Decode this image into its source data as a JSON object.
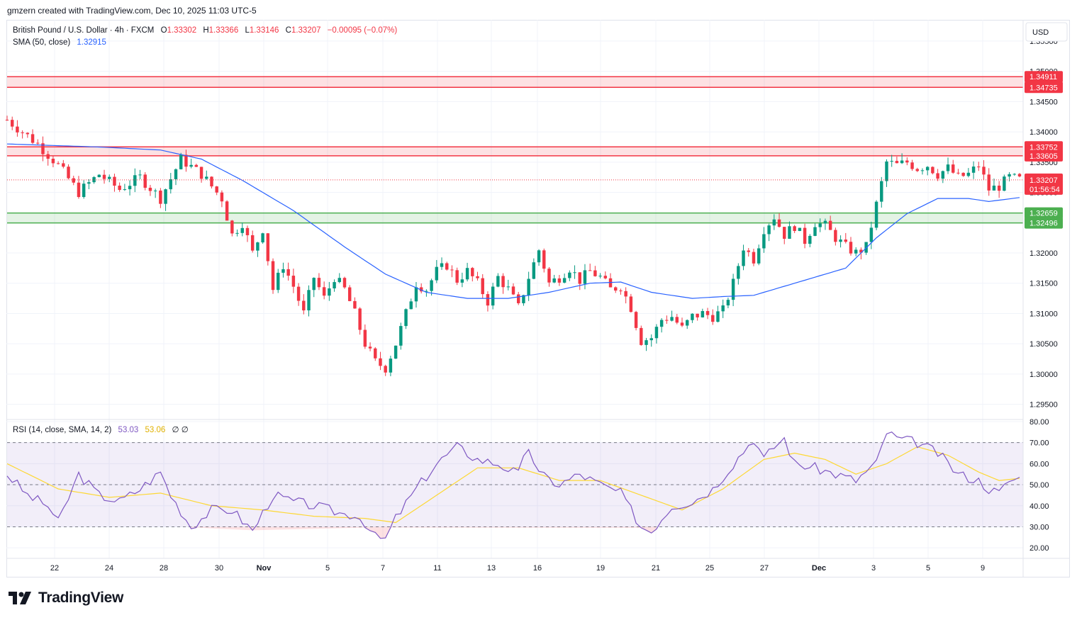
{
  "header": {
    "credit": "gmzern created with TradingView.com, Dec 10, 2025 11:03 UTC-5"
  },
  "legend": {
    "symbol": "British Pound / U.S. Dollar · 4h · FXCM",
    "o_label": "O",
    "o_value": "1.33302",
    "h_label": "H",
    "h_value": "1.33366",
    "l_label": "L",
    "l_value": "1.33146",
    "c_label": "C",
    "c_value": "1.33207",
    "change": "−0.00095 (−0.07%)",
    "sma_label": "SMA (50, close)",
    "sma_value": "1.32915",
    "rsi_label": "RSI (14, close, SMA, 14, 2)",
    "rsi_value": "53.03",
    "rsi_sma_value": "53.06",
    "rsi_extra": "∅ ∅"
  },
  "currency": "USD",
  "branding": "TradingView",
  "colors": {
    "up": "#089981",
    "down": "#f23645",
    "sma": "#2962ff",
    "rsi": "#7e57c2",
    "rsi_sma": "#fdd835",
    "resistance": "#f23645",
    "support": "#4caf50",
    "text": "#131722"
  },
  "chart_data": [
    {
      "type": "candlestick",
      "title": "British Pound / U.S. Dollar · 4h · FXCM",
      "ylim": [
        1.2925,
        1.3585
      ],
      "y_ticks": [
        "1.35500",
        "1.35000",
        "1.34500",
        "1.34000",
        "1.33500",
        "1.33000",
        "1.32500",
        "1.32000",
        "1.31500",
        "1.31000",
        "1.30500",
        "1.30000",
        "1.29500"
      ],
      "x_ticks": [
        "22",
        "24",
        "28",
        "30",
        "Nov",
        "5",
        "7",
        "11",
        "13",
        "16",
        "19",
        "21",
        "25",
        "27",
        "Dec",
        "3",
        "5",
        "9"
      ],
      "x_tick_bold": [
        "Nov",
        "Dec"
      ],
      "last_price": "1.33207",
      "countdown": "01:56:54",
      "zones": [
        {
          "kind": "resistance",
          "high": 1.34911,
          "low": 1.34735,
          "high_label": "1.34911",
          "low_label": "1.34735"
        },
        {
          "kind": "resistance",
          "high": 1.33752,
          "low": 1.33605,
          "high_label": "1.33752",
          "low_label": "1.33605"
        },
        {
          "kind": "support",
          "high": 1.32659,
          "low": 1.32496,
          "high_label": "1.32659",
          "low_label": "1.32496"
        }
      ],
      "price_path": [
        [
          0,
          1.342
        ],
        [
          6,
          1.338
        ],
        [
          10,
          1.3345
        ],
        [
          14,
          1.33
        ],
        [
          18,
          1.333
        ],
        [
          22,
          1.3305
        ],
        [
          26,
          1.3325
        ],
        [
          30,
          1.329
        ],
        [
          34,
          1.3355
        ],
        [
          38,
          1.333
        ],
        [
          42,
          1.329
        ],
        [
          44,
          1.323
        ],
        [
          46,
          1.325
        ],
        [
          48,
          1.32
        ],
        [
          50,
          1.324
        ],
        [
          52,
          1.314
        ],
        [
          54,
          1.318
        ],
        [
          56,
          1.3145
        ],
        [
          58,
          1.31
        ],
        [
          60,
          1.316
        ],
        [
          62,
          1.3125
        ],
        [
          64,
          1.316
        ],
        [
          66,
          1.314
        ],
        [
          68,
          1.31
        ],
        [
          70,
          1.305
        ],
        [
          72,
          1.302
        ],
        [
          74,
          1.301
        ],
        [
          76,
          1.305
        ],
        [
          78,
          1.31
        ],
        [
          80,
          1.315
        ],
        [
          82,
          1.314
        ],
        [
          84,
          1.317
        ],
        [
          86,
          1.318
        ],
        [
          88,
          1.3155
        ],
        [
          90,
          1.317
        ],
        [
          92,
          1.315
        ],
        [
          94,
          1.312
        ],
        [
          96,
          1.316
        ],
        [
          98,
          1.314
        ],
        [
          100,
          1.311
        ],
        [
          102,
          1.316
        ],
        [
          104,
          1.3205
        ],
        [
          106,
          1.315
        ],
        [
          108,
          1.316
        ],
        [
          110,
          1.3175
        ],
        [
          112,
          1.3155
        ],
        [
          114,
          1.317
        ],
        [
          116,
          1.316
        ],
        [
          118,
          1.314
        ],
        [
          120,
          1.3145
        ],
        [
          122,
          1.311
        ],
        [
          124,
          1.3055
        ],
        [
          126,
          1.306
        ],
        [
          128,
          1.309
        ],
        [
          130,
          1.3095
        ],
        [
          132,
          1.3075
        ],
        [
          134,
          1.3095
        ],
        [
          136,
          1.31
        ],
        [
          138,
          1.3095
        ],
        [
          140,
          1.3105
        ],
        [
          142,
          1.315
        ],
        [
          144,
          1.321
        ],
        [
          146,
          1.319
        ],
        [
          148,
          1.324
        ],
        [
          150,
          1.326
        ],
        [
          152,
          1.323
        ],
        [
          154,
          1.3245
        ],
        [
          156,
          1.322
        ],
        [
          158,
          1.325
        ],
        [
          160,
          1.3245
        ],
        [
          162,
          1.3225
        ],
        [
          164,
          1.321
        ],
        [
          166,
          1.32
        ],
        [
          168,
          1.321
        ],
        [
          170,
          1.328
        ],
        [
          172,
          1.335
        ],
        [
          174,
          1.3345
        ],
        [
          176,
          1.335
        ],
        [
          178,
          1.334
        ],
        [
          180,
          1.3345
        ],
        [
          182,
          1.333
        ],
        [
          184,
          1.334
        ],
        [
          186,
          1.3325
        ],
        [
          188,
          1.333
        ],
        [
          190,
          1.3345
        ],
        [
          192,
          1.3305
        ],
        [
          194,
          1.331
        ],
        [
          196,
          1.3325
        ],
        [
          198,
          1.3321
        ]
      ],
      "sma_path": [
        [
          0,
          1.338
        ],
        [
          18,
          1.3375
        ],
        [
          30,
          1.337
        ],
        [
          38,
          1.3355
        ],
        [
          46,
          1.332
        ],
        [
          56,
          1.327
        ],
        [
          66,
          1.321
        ],
        [
          74,
          1.3165
        ],
        [
          82,
          1.3135
        ],
        [
          90,
          1.3125
        ],
        [
          98,
          1.3125
        ],
        [
          106,
          1.3135
        ],
        [
          114,
          1.315
        ],
        [
          120,
          1.3152
        ],
        [
          126,
          1.3135
        ],
        [
          134,
          1.3125
        ],
        [
          140,
          1.3128
        ],
        [
          146,
          1.313
        ],
        [
          152,
          1.3145
        ],
        [
          158,
          1.316
        ],
        [
          164,
          1.3175
        ],
        [
          170,
          1.3225
        ],
        [
          176,
          1.3265
        ],
        [
          182,
          1.329
        ],
        [
          188,
          1.329
        ],
        [
          192,
          1.3285
        ],
        [
          198,
          1.32915
        ]
      ],
      "n_bars": 199
    },
    {
      "type": "line",
      "title": "RSI (14, close, SMA, 14, 2)",
      "ylim": [
        15,
        81
      ],
      "y_ticks": [
        "80.00",
        "70.00",
        "60.00",
        "50.00",
        "40.00",
        "30.00",
        "20.00"
      ],
      "band": [
        30,
        70
      ],
      "midline": 50,
      "series": [
        {
          "name": "RSI",
          "values": [
            [
              0,
              55
            ],
            [
              4,
              45
            ],
            [
              8,
              40
            ],
            [
              10,
              32
            ],
            [
              14,
              55
            ],
            [
              18,
              45
            ],
            [
              22,
              42
            ],
            [
              26,
              48
            ],
            [
              30,
              56
            ],
            [
              32,
              45
            ],
            [
              36,
              30
            ],
            [
              40,
              38
            ],
            [
              44,
              38
            ],
            [
              48,
              28
            ],
            [
              52,
              45
            ],
            [
              56,
              42
            ],
            [
              60,
              40
            ],
            [
              66,
              36
            ],
            [
              68,
              36
            ],
            [
              70,
              32
            ],
            [
              72,
              25
            ],
            [
              74,
              24
            ],
            [
              76,
              34
            ],
            [
              80,
              48
            ],
            [
              84,
              60
            ],
            [
              88,
              68
            ],
            [
              92,
              62
            ],
            [
              96,
              60
            ],
            [
              100,
              55
            ],
            [
              102,
              68
            ],
            [
              104,
              55
            ],
            [
              108,
              50
            ],
            [
              112,
              55
            ],
            [
              116,
              50
            ],
            [
              120,
              46
            ],
            [
              122,
              38
            ],
            [
              124,
              30
            ],
            [
              126,
              28
            ],
            [
              130,
              40
            ],
            [
              134,
              42
            ],
            [
              138,
              48
            ],
            [
              142,
              60
            ],
            [
              146,
              72
            ],
            [
              148,
              62
            ],
            [
              150,
              68
            ],
            [
              152,
              72
            ],
            [
              154,
              60
            ],
            [
              158,
              58
            ],
            [
              162,
              55
            ],
            [
              166,
              52
            ],
            [
              170,
              60
            ],
            [
              172,
              75
            ],
            [
              174,
              72
            ],
            [
              178,
              70
            ],
            [
              182,
              65
            ],
            [
              186,
              55
            ],
            [
              190,
              52
            ],
            [
              192,
              48
            ],
            [
              194,
              46
            ],
            [
              196,
              52
            ],
            [
              198,
              53
            ]
          ]
        },
        {
          "name": "RSI-based MA",
          "values": [
            [
              0,
              60
            ],
            [
              10,
              48
            ],
            [
              20,
              44
            ],
            [
              30,
              46
            ],
            [
              40,
              40
            ],
            [
              50,
              38
            ],
            [
              60,
              35
            ],
            [
              70,
              34
            ],
            [
              76,
              32
            ],
            [
              84,
              45
            ],
            [
              92,
              58
            ],
            [
              100,
              58
            ],
            [
              108,
              52
            ],
            [
              116,
              52
            ],
            [
              124,
              45
            ],
            [
              132,
              38
            ],
            [
              140,
              48
            ],
            [
              148,
              62
            ],
            [
              154,
              65
            ],
            [
              160,
              62
            ],
            [
              166,
              55
            ],
            [
              172,
              60
            ],
            [
              178,
              68
            ],
            [
              184,
              64
            ],
            [
              190,
              56
            ],
            [
              194,
              52
            ],
            [
              198,
              53
            ]
          ]
        }
      ]
    }
  ]
}
